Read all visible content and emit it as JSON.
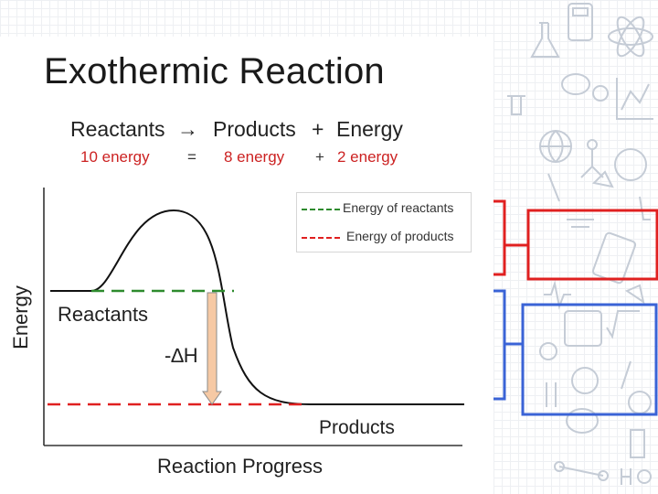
{
  "title": "Exothermic Reaction",
  "equation": {
    "reactants": "Reactants",
    "arrow": "→",
    "products": "Products",
    "plus": "+",
    "energy": "Energy",
    "reactant_energy": "10 energy",
    "equals": "=",
    "product_energy": "8 energy",
    "plus2": "+",
    "released_energy": "2 energy"
  },
  "diagram": {
    "y_label": "Energy",
    "x_label": "Reaction Progress",
    "reactants_label": "Reactants",
    "products_label": "Products",
    "delta_h_label": "-∆H"
  },
  "legend": {
    "reactants_entry": "Energy of reactants",
    "products_entry": "Energy of products"
  },
  "colors": {
    "reactant_line": "#2e8b2e",
    "product_line": "#e02020",
    "arrow_fill": "#f6c9a4",
    "box_red": "#e02020",
    "box_blue": "#3a63d6"
  }
}
